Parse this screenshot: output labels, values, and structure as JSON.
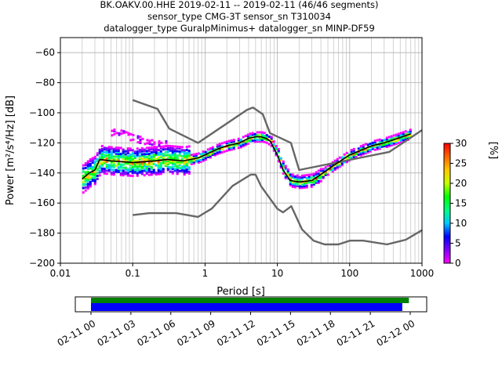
{
  "title_lines": [
    "BK.OAKV.00.HHE   2019-02-11 -- 2019-02-11  (46/46 segments)",
    "sensor_type CMG-3T sensor_sn T310034",
    "datalogger_type GuralpMinimus+ datalogger_sn MINP-DF59"
  ],
  "chart_data": {
    "type": "heatmap",
    "xlabel": "Period [s]",
    "ylabel": "Power [m²/s⁴/Hz] [dB]",
    "x_scale": "log",
    "xlim": [
      0.01,
      1000
    ],
    "ylim": [
      -200,
      -50
    ],
    "x_ticks": [
      0.01,
      0.1,
      1,
      10,
      100,
      1000
    ],
    "x_tick_labels": [
      "0.01",
      "0.1",
      "1",
      "10",
      "100",
      "1000"
    ],
    "y_ticks": [
      -200,
      -180,
      -160,
      -140,
      -120,
      -100,
      -80,
      -60
    ],
    "grid": true,
    "colorbar": {
      "label": "[%]",
      "min": 0,
      "max": 30,
      "ticks": [
        0,
        5,
        10,
        15,
        20,
        25,
        30
      ],
      "colormap": [
        "#ff00ff",
        "#8000ff",
        "#0000ff",
        "#00c8ff",
        "#00ff80",
        "#00ff00",
        "#c8ff00",
        "#ffc800",
        "#ff6400",
        "#ff0000"
      ]
    },
    "series": [
      {
        "name": "NHNM",
        "color": "#666666",
        "points": [
          [
            0.1,
            -91.5
          ],
          [
            0.22,
            -97.4
          ],
          [
            0.32,
            -110.5
          ],
          [
            0.8,
            -120
          ],
          [
            3.8,
            -98
          ],
          [
            4.6,
            -96.5
          ],
          [
            6.3,
            -101
          ],
          [
            7.9,
            -113.5
          ],
          [
            15.4,
            -120
          ],
          [
            20,
            -138
          ],
          [
            354,
            -126
          ],
          [
            1000,
            -111.5
          ]
        ]
      },
      {
        "name": "NLNM",
        "color": "#666666",
        "points": [
          [
            0.1,
            -168
          ],
          [
            0.17,
            -166.7
          ],
          [
            0.4,
            -166.7
          ],
          [
            0.8,
            -169.2
          ],
          [
            1.24,
            -163.7
          ],
          [
            2.4,
            -148.6
          ],
          [
            4.3,
            -141.1
          ],
          [
            5,
            -141.1
          ],
          [
            6,
            -149
          ],
          [
            10,
            -163.8
          ],
          [
            12,
            -166.2
          ],
          [
            15.6,
            -162.1
          ],
          [
            21.9,
            -177.5
          ],
          [
            31.6,
            -185
          ],
          [
            45,
            -187.5
          ],
          [
            70,
            -187.5
          ],
          [
            101,
            -185
          ],
          [
            154,
            -185
          ],
          [
            328,
            -187.5
          ],
          [
            600,
            -184.4
          ],
          [
            1000,
            -178
          ]
        ]
      },
      {
        "name": "mode",
        "color": "#000000",
        "points": [
          [
            0.02,
            -144
          ],
          [
            0.025,
            -140
          ],
          [
            0.03,
            -138
          ],
          [
            0.035,
            -131
          ],
          [
            0.05,
            -132
          ],
          [
            0.1,
            -133
          ],
          [
            0.2,
            -132
          ],
          [
            0.3,
            -131
          ],
          [
            0.5,
            -132
          ],
          [
            0.8,
            -130
          ],
          [
            1,
            -128
          ],
          [
            1.5,
            -124
          ],
          [
            2,
            -122
          ],
          [
            3,
            -120
          ],
          [
            4,
            -117
          ],
          [
            5,
            -116
          ],
          [
            6,
            -116
          ],
          [
            7,
            -117
          ],
          [
            8,
            -119
          ],
          [
            10,
            -128
          ],
          [
            12,
            -138
          ],
          [
            15,
            -145
          ],
          [
            20,
            -146
          ],
          [
            30,
            -145
          ],
          [
            40,
            -141
          ],
          [
            60,
            -135
          ],
          [
            100,
            -128
          ],
          [
            200,
            -122
          ],
          [
            300,
            -120
          ],
          [
            400,
            -118
          ],
          [
            700,
            -114
          ]
        ]
      }
    ],
    "psd_band": {
      "center": [
        [
          0.02,
          -144
        ],
        [
          0.025,
          -140
        ],
        [
          0.03,
          -138
        ],
        [
          0.035,
          -131
        ],
        [
          0.05,
          -132
        ],
        [
          0.1,
          -133
        ],
        [
          0.2,
          -132
        ],
        [
          0.3,
          -131
        ],
        [
          0.5,
          -132
        ],
        [
          0.8,
          -130
        ],
        [
          1,
          -128
        ],
        [
          1.5,
          -124
        ],
        [
          2,
          -122
        ],
        [
          3,
          -120
        ],
        [
          4,
          -117
        ],
        [
          5,
          -116
        ],
        [
          6,
          -116
        ],
        [
          7,
          -117
        ],
        [
          8,
          -119
        ],
        [
          10,
          -128
        ],
        [
          12,
          -138
        ],
        [
          15,
          -145
        ],
        [
          20,
          -146
        ],
        [
          30,
          -145
        ],
        [
          40,
          -141
        ],
        [
          60,
          -135
        ],
        [
          100,
          -128
        ],
        [
          200,
          -122
        ],
        [
          300,
          -120
        ],
        [
          400,
          -118
        ],
        [
          700,
          -114
        ]
      ],
      "upper_scatter": [
        [
          0.05,
          -113
        ],
        [
          0.07,
          -114
        ],
        [
          0.1,
          -117
        ],
        [
          0.15,
          -119
        ],
        [
          0.2,
          -121
        ],
        [
          0.3,
          -121
        ]
      ]
    }
  },
  "timeline": {
    "start": "2019-02-11 00:00",
    "end": "2019-02-12 00:30",
    "tick_labels": [
      "02-11 00",
      "02-11 03",
      "02-11 06",
      "02-11 09",
      "02-11 12",
      "02-11 15",
      "02-11 18",
      "02-11 21",
      "02-12 00"
    ],
    "data_coverage": {
      "from_hour": 0,
      "to_hour": 23.9,
      "color": "#008000"
    },
    "psd_coverage": {
      "from_hour": 0,
      "to_hour": 23.4,
      "color": "#0000ff"
    }
  }
}
